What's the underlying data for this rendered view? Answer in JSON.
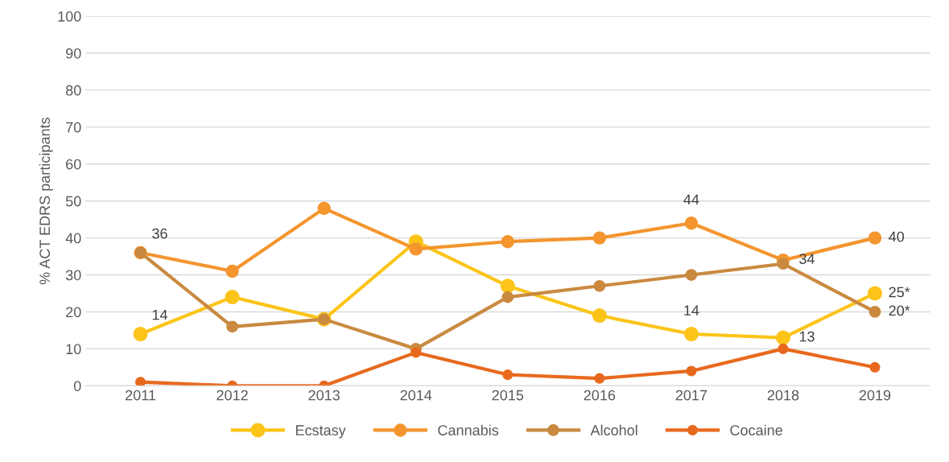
{
  "chart_data": {
    "type": "line",
    "ylabel": "% ACT EDRS participants",
    "categories": [
      "2011",
      "2012",
      "2013",
      "2014",
      "2015",
      "2016",
      "2017",
      "2018",
      "2019"
    ],
    "series": [
      {
        "name": "Ecstasy",
        "color": "#fcc419",
        "values": [
          14,
          24,
          18,
          39,
          27,
          19,
          14,
          13,
          25
        ],
        "value_labels": [
          "14",
          null,
          null,
          null,
          null,
          null,
          "14",
          "13",
          "25*"
        ]
      },
      {
        "name": "Cannabis",
        "color": "#f4952e",
        "values": [
          36,
          31,
          48,
          37,
          39,
          40,
          44,
          34,
          40
        ],
        "value_labels": [
          "36",
          null,
          null,
          null,
          null,
          null,
          "44",
          "34",
          "40"
        ]
      },
      {
        "name": "Alcohol",
        "color": "#c98a40",
        "values": [
          36,
          16,
          18,
          10,
          24,
          27,
          30,
          33,
          20
        ],
        "value_labels": [
          null,
          null,
          null,
          null,
          null,
          null,
          null,
          null,
          "20*"
        ]
      },
      {
        "name": "Cocaine",
        "color": "#e8691e",
        "values": [
          1,
          0,
          0,
          9,
          3,
          2,
          4,
          10,
          5
        ]
      }
    ],
    "ylim": [
      0,
      100
    ],
    "yticks": [
      0,
      10,
      20,
      30,
      40,
      50,
      60,
      70,
      80,
      90,
      100
    ],
    "grid": "y",
    "legend": "bottom",
    "marker": "circle",
    "line_style": "solid"
  }
}
